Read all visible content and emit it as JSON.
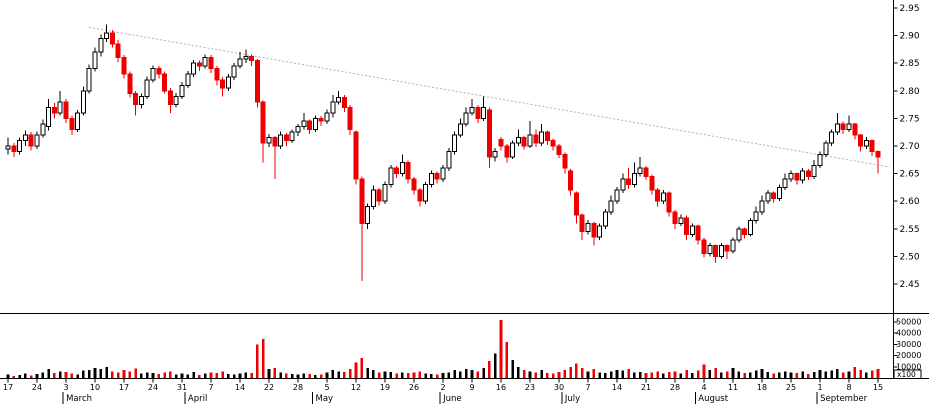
{
  "chart_data": {
    "type": "candlestick",
    "title": "",
    "description": "Daily OHLC candlestick price chart with volume sub-pane and descending trendline",
    "colors": {
      "up_fill": "#ffffff",
      "up_outline": "#000000",
      "down": "#ee0000",
      "volume_up": "#000000",
      "volume_down": "#ee0000",
      "axis": "#000000",
      "trendline": "#aaaaaa"
    },
    "price_axis": {
      "side": "right",
      "ticks": [
        2.95,
        2.9,
        2.85,
        2.8,
        2.75,
        2.7,
        2.65,
        2.6,
        2.55,
        2.5,
        2.45
      ],
      "range": [
        2.45,
        2.95
      ]
    },
    "volume_axis": {
      "side": "right",
      "ticks": [
        50000,
        40000,
        30000,
        20000,
        10000
      ],
      "range": [
        0,
        50000
      ],
      "unit_label": "x100"
    },
    "x_axis": {
      "week_tick_labels": [
        "17",
        "24",
        "3",
        "10",
        "17",
        "24",
        "31",
        "7",
        "14",
        "22",
        "28",
        "5",
        "12",
        "19",
        "26",
        "2",
        "9",
        "16",
        "23",
        "30",
        "7",
        "14",
        "21",
        "28",
        "4",
        "11",
        "18",
        "25",
        "1",
        "8",
        "15"
      ],
      "days_per_tick": 5,
      "months": [
        {
          "label": "March",
          "boundary_day": 9.5
        },
        {
          "label": "April",
          "boundary_day": 30.5
        },
        {
          "label": "May",
          "boundary_day": 52.5
        },
        {
          "label": "June",
          "boundary_day": 74.5
        },
        {
          "label": "July",
          "boundary_day": 95.5
        },
        {
          "label": "August",
          "boundary_day": 118.5
        },
        {
          "label": "September",
          "boundary_day": 139.5
        }
      ]
    },
    "trendline": {
      "from_day": 14,
      "from_price": 2.915,
      "to_day": 152,
      "to_price": 2.662
    },
    "candles": [
      [
        2.695,
        2.715,
        2.685,
        2.7
      ],
      [
        2.7,
        2.705,
        2.68,
        2.69
      ],
      [
        2.69,
        2.715,
        2.685,
        2.71
      ],
      [
        2.71,
        2.728,
        2.7,
        2.72
      ],
      [
        2.72,
        2.725,
        2.692,
        2.7
      ],
      [
        2.7,
        2.726,
        2.695,
        2.72
      ],
      [
        2.72,
        2.748,
        2.715,
        2.74
      ],
      [
        2.735,
        2.785,
        2.728,
        2.77
      ],
      [
        2.77,
        2.778,
        2.75,
        2.76
      ],
      [
        2.76,
        2.8,
        2.755,
        2.78
      ],
      [
        2.78,
        2.785,
        2.742,
        2.75
      ],
      [
        2.75,
        2.755,
        2.72,
        2.73
      ],
      [
        2.73,
        2.765,
        2.725,
        2.76
      ],
      [
        2.76,
        2.808,
        2.755,
        2.8
      ],
      [
        2.8,
        2.848,
        2.795,
        2.84
      ],
      [
        2.84,
        2.878,
        2.835,
        2.87
      ],
      [
        2.87,
        2.902,
        2.862,
        2.895
      ],
      [
        2.895,
        2.92,
        2.888,
        2.905
      ],
      [
        2.905,
        2.91,
        2.878,
        2.885
      ],
      [
        2.885,
        2.892,
        2.852,
        2.86
      ],
      [
        2.86,
        2.865,
        2.822,
        2.83
      ],
      [
        2.83,
        2.835,
        2.788,
        2.795
      ],
      [
        2.795,
        2.8,
        2.755,
        2.775
      ],
      [
        2.775,
        2.795,
        2.768,
        2.79
      ],
      [
        2.79,
        2.826,
        2.785,
        2.82
      ],
      [
        2.82,
        2.846,
        2.815,
        2.84
      ],
      [
        2.84,
        2.845,
        2.822,
        2.83
      ],
      [
        2.83,
        2.835,
        2.795,
        2.8
      ],
      [
        2.8,
        2.805,
        2.76,
        2.775
      ],
      [
        2.775,
        2.796,
        2.77,
        2.79
      ],
      [
        2.79,
        2.816,
        2.785,
        2.81
      ],
      [
        2.81,
        2.836,
        2.805,
        2.83
      ],
      [
        2.83,
        2.856,
        2.825,
        2.85
      ],
      [
        2.85,
        2.855,
        2.836,
        2.845
      ],
      [
        2.845,
        2.866,
        2.84,
        2.86
      ],
      [
        2.86,
        2.865,
        2.832,
        2.84
      ],
      [
        2.84,
        2.845,
        2.81,
        2.82
      ],
      [
        2.82,
        2.825,
        2.79,
        2.805
      ],
      [
        2.805,
        2.83,
        2.8,
        2.825
      ],
      [
        2.825,
        2.85,
        2.82,
        2.845
      ],
      [
        2.845,
        2.87,
        2.84,
        2.858
      ],
      [
        2.858,
        2.875,
        2.85,
        2.862
      ],
      [
        2.862,
        2.866,
        2.845,
        2.855
      ],
      [
        2.855,
        2.858,
        2.77,
        2.78
      ],
      [
        2.78,
        2.782,
        2.67,
        2.705
      ],
      [
        2.705,
        2.722,
        2.698,
        2.715
      ],
      [
        2.715,
        2.718,
        2.64,
        2.7
      ],
      [
        2.7,
        2.726,
        2.695,
        2.72
      ],
      [
        2.72,
        2.724,
        2.7,
        2.71
      ],
      [
        2.71,
        2.73,
        2.705,
        2.725
      ],
      [
        2.725,
        2.74,
        2.718,
        2.735
      ],
      [
        2.735,
        2.76,
        2.73,
        2.745
      ],
      [
        2.745,
        2.748,
        2.722,
        2.73
      ],
      [
        2.73,
        2.755,
        2.725,
        2.75
      ],
      [
        2.75,
        2.754,
        2.736,
        2.745
      ],
      [
        2.745,
        2.766,
        2.74,
        2.76
      ],
      [
        2.76,
        2.792,
        2.752,
        2.78
      ],
      [
        2.78,
        2.8,
        2.775,
        2.788
      ],
      [
        2.788,
        2.792,
        2.762,
        2.77
      ],
      [
        2.77,
        2.774,
        2.72,
        2.73
      ],
      [
        2.725,
        2.728,
        2.63,
        2.64
      ],
      [
        2.64,
        2.645,
        2.455,
        2.56
      ],
      [
        2.56,
        2.596,
        2.55,
        2.59
      ],
      [
        2.59,
        2.628,
        2.585,
        2.62
      ],
      [
        2.62,
        2.624,
        2.592,
        2.6
      ],
      [
        2.6,
        2.636,
        2.595,
        2.63
      ],
      [
        2.63,
        2.666,
        2.625,
        2.66
      ],
      [
        2.66,
        2.664,
        2.642,
        2.65
      ],
      [
        2.65,
        2.685,
        2.645,
        2.67
      ],
      [
        2.67,
        2.674,
        2.632,
        2.64
      ],
      [
        2.64,
        2.644,
        2.612,
        2.62
      ],
      [
        2.62,
        2.624,
        2.59,
        2.6
      ],
      [
        2.6,
        2.635,
        2.595,
        2.63
      ],
      [
        2.63,
        2.656,
        2.625,
        2.65
      ],
      [
        2.65,
        2.654,
        2.632,
        2.64
      ],
      [
        2.64,
        2.666,
        2.635,
        2.66
      ],
      [
        2.66,
        2.696,
        2.655,
        2.69
      ],
      [
        2.69,
        2.726,
        2.685,
        2.72
      ],
      [
        2.72,
        2.75,
        2.715,
        2.74
      ],
      [
        2.74,
        2.77,
        2.735,
        2.76
      ],
      [
        2.76,
        2.785,
        2.755,
        2.77
      ],
      [
        2.77,
        2.774,
        2.742,
        2.75
      ],
      [
        2.75,
        2.79,
        2.745,
        2.77
      ],
      [
        2.765,
        2.77,
        2.66,
        2.68
      ],
      [
        2.68,
        2.696,
        2.672,
        2.69
      ],
      [
        2.712,
        2.716,
        2.692,
        2.7
      ],
      [
        2.7,
        2.704,
        2.67,
        2.68
      ],
      [
        2.68,
        2.71,
        2.676,
        2.705
      ],
      [
        2.705,
        2.73,
        2.7,
        2.715
      ],
      [
        2.715,
        2.718,
        2.694,
        2.7
      ],
      [
        2.7,
        2.745,
        2.696,
        2.72
      ],
      [
        2.72,
        2.73,
        2.698,
        2.705
      ],
      [
        2.705,
        2.74,
        2.7,
        2.725
      ],
      [
        2.725,
        2.728,
        2.702,
        2.71
      ],
      [
        2.71,
        2.714,
        2.692,
        2.7
      ],
      [
        2.7,
        2.704,
        2.678,
        2.685
      ],
      [
        2.685,
        2.688,
        2.65,
        2.66
      ],
      [
        2.655,
        2.658,
        2.61,
        2.62
      ],
      [
        2.615,
        2.618,
        2.56,
        2.575
      ],
      [
        2.575,
        2.578,
        2.53,
        2.545
      ],
      [
        2.545,
        2.566,
        2.54,
        2.56
      ],
      [
        2.56,
        2.562,
        2.52,
        2.535
      ],
      [
        2.535,
        2.56,
        2.53,
        2.555
      ],
      [
        2.555,
        2.586,
        2.55,
        2.58
      ],
      [
        2.58,
        2.61,
        2.575,
        2.6
      ],
      [
        2.6,
        2.626,
        2.595,
        2.62
      ],
      [
        2.62,
        2.65,
        2.615,
        2.64
      ],
      [
        2.64,
        2.66,
        2.622,
        2.63
      ],
      [
        2.63,
        2.67,
        2.625,
        2.65
      ],
      [
        2.65,
        2.68,
        2.645,
        2.66
      ],
      [
        2.66,
        2.664,
        2.638,
        2.645
      ],
      [
        2.645,
        2.648,
        2.612,
        2.62
      ],
      [
        2.62,
        2.624,
        2.59,
        2.6
      ],
      [
        2.6,
        2.62,
        2.595,
        2.615
      ],
      [
        2.615,
        2.618,
        2.572,
        2.58
      ],
      [
        2.58,
        2.584,
        2.55,
        2.56
      ],
      [
        2.56,
        2.576,
        2.555,
        2.57
      ],
      [
        2.57,
        2.574,
        2.53,
        2.54
      ],
      [
        2.54,
        2.56,
        2.535,
        2.555
      ],
      [
        2.555,
        2.558,
        2.522,
        2.53
      ],
      [
        2.53,
        2.534,
        2.498,
        2.505
      ],
      [
        2.505,
        2.524,
        2.5,
        2.52
      ],
      [
        2.52,
        2.522,
        2.488,
        2.5
      ],
      [
        2.5,
        2.524,
        2.496,
        2.52
      ],
      [
        2.52,
        2.522,
        2.495,
        2.51
      ],
      [
        2.51,
        2.534,
        2.505,
        2.53
      ],
      [
        2.53,
        2.554,
        2.525,
        2.55
      ],
      [
        2.55,
        2.552,
        2.532,
        2.54
      ],
      [
        2.54,
        2.57,
        2.536,
        2.565
      ],
      [
        2.565,
        2.59,
        2.56,
        2.58
      ],
      [
        2.58,
        2.61,
        2.575,
        2.6
      ],
      [
        2.6,
        2.62,
        2.595,
        2.615
      ],
      [
        2.615,
        2.618,
        2.598,
        2.605
      ],
      [
        2.605,
        2.63,
        2.6,
        2.625
      ],
      [
        2.625,
        2.65,
        2.62,
        2.64
      ],
      [
        2.64,
        2.656,
        2.635,
        2.65
      ],
      [
        2.65,
        2.652,
        2.63,
        2.638
      ],
      [
        2.638,
        2.66,
        2.632,
        2.655
      ],
      [
        2.655,
        2.658,
        2.638,
        2.645
      ],
      [
        2.645,
        2.675,
        2.64,
        2.665
      ],
      [
        2.665,
        2.69,
        2.66,
        2.685
      ],
      [
        2.685,
        2.71,
        2.68,
        2.705
      ],
      [
        2.705,
        2.73,
        2.7,
        2.725
      ],
      [
        2.725,
        2.76,
        2.72,
        2.74
      ],
      [
        2.74,
        2.744,
        2.722,
        2.73
      ],
      [
        2.73,
        2.755,
        2.725,
        2.74
      ],
      [
        2.74,
        2.742,
        2.712,
        2.72
      ],
      [
        2.72,
        2.722,
        2.69,
        2.7
      ],
      [
        2.7,
        2.716,
        2.695,
        2.71
      ],
      [
        2.71,
        2.712,
        2.682,
        2.69
      ],
      [
        2.69,
        2.692,
        2.65,
        2.68
      ]
    ],
    "volumes": [
      3000,
      2000,
      2500,
      4000,
      2200,
      3500,
      5000,
      8000,
      4500,
      6000,
      5200,
      4000,
      3000,
      6500,
      7000,
      9000,
      8000,
      10000,
      6000,
      5000,
      7000,
      6000,
      8500,
      4000,
      5000,
      4500,
      3500,
      5000,
      6000,
      3000,
      4000,
      3200,
      5500,
      2800,
      4200,
      5000,
      4500,
      6000,
      3500,
      3000,
      4000,
      5000,
      4500,
      30000,
      35000,
      8000,
      9000,
      5000,
      4000,
      3500,
      3000,
      4000,
      3500,
      2500,
      3000,
      5000,
      7000,
      6000,
      5500,
      8000,
      14000,
      18000,
      9000,
      7000,
      5000,
      6000,
      5500,
      4000,
      5000,
      4500,
      5000,
      6000,
      4000,
      3500,
      3000,
      4500,
      5000,
      7000,
      6000,
      8000,
      7000,
      6000,
      9000,
      15000,
      22000,
      52000,
      32000,
      16000,
      10000,
      7000,
      6000,
      5000,
      7000,
      4500,
      4000,
      5500,
      7000,
      10000,
      13000,
      9000,
      6000,
      8000,
      5000,
      4500,
      6000,
      7000,
      6500,
      8000,
      5000,
      5500,
      4500,
      5000,
      6000,
      4000,
      5500,
      6000,
      4000,
      7000,
      4500,
      6500,
      12000,
      7000,
      9000,
      5000,
      6000,
      9000,
      6000,
      4500,
      5000,
      6500,
      8000,
      5500,
      4000,
      5000,
      6000,
      5000,
      4500,
      6000,
      3500,
      5500,
      7000,
      6000,
      6500,
      8000,
      5000,
      6000,
      10000,
      7000,
      5000,
      6500,
      8000
    ]
  }
}
